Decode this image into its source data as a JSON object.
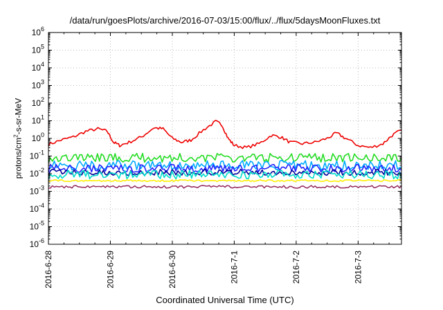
{
  "chart_data": {
    "type": "line",
    "title": "/data/run/goesPlots/archive/2016-07-03/15:00/flux/../flux/5daysMoonFluxes.txt",
    "xlabel": "Coordinated Universal Time (UTC)",
    "ylabel_parts": [
      "protons/cm",
      "2",
      "-s-sr-MeV"
    ],
    "y_scale": "log",
    "ylim": [
      1e-06,
      1000000.0
    ],
    "y_ticks": [
      {
        "base": "10",
        "exp": "6"
      },
      {
        "base": "10",
        "exp": "5"
      },
      {
        "base": "10",
        "exp": "4"
      },
      {
        "base": "10",
        "exp": "3"
      },
      {
        "base": "10",
        "exp": "2"
      },
      {
        "base": "10",
        "exp": "1"
      },
      {
        "base": "10",
        "exp": "0"
      },
      {
        "base": "10",
        "exp": "-1"
      },
      {
        "base": "10",
        "exp": "-2"
      },
      {
        "base": "10",
        "exp": "-3"
      },
      {
        "base": "10",
        "exp": "-4"
      },
      {
        "base": "10",
        "exp": "-5"
      },
      {
        "base": "10",
        "exp": "-6"
      }
    ],
    "x_tick_labels": [
      "2016-6-28",
      "2016-6-29",
      "2016-6-30",
      "2016-7-1",
      "2016-7-2",
      "2016-7-3"
    ],
    "x_range_days": [
      0,
      5.7
    ],
    "grid": true,
    "series": [
      {
        "color": "#ee0000",
        "points": [
          [
            0,
            0.45
          ],
          [
            0.2,
            0.8
          ],
          [
            0.4,
            1.2
          ],
          [
            0.6,
            2.5
          ],
          [
            0.8,
            3.5
          ],
          [
            0.95,
            2.5
          ],
          [
            1.05,
            0.6
          ],
          [
            1.15,
            0.4
          ],
          [
            1.3,
            0.6
          ],
          [
            1.5,
            1.2
          ],
          [
            1.7,
            4.0
          ],
          [
            1.85,
            3.5
          ],
          [
            2.0,
            1.0
          ],
          [
            2.15,
            0.6
          ],
          [
            2.3,
            0.8
          ],
          [
            2.5,
            3.0
          ],
          [
            2.7,
            9.0
          ],
          [
            2.8,
            6.0
          ],
          [
            2.9,
            1.0
          ],
          [
            3.0,
            0.4
          ],
          [
            3.2,
            0.3
          ],
          [
            3.4,
            0.5
          ],
          [
            3.6,
            1.5
          ],
          [
            3.75,
            1.2
          ],
          [
            3.9,
            0.6
          ],
          [
            4.1,
            0.5
          ],
          [
            4.3,
            0.6
          ],
          [
            4.5,
            1.0
          ],
          [
            4.65,
            2.0
          ],
          [
            4.8,
            1.0
          ],
          [
            5.0,
            0.4
          ],
          [
            5.2,
            0.3
          ],
          [
            5.4,
            0.5
          ],
          [
            5.55,
            1.5
          ],
          [
            5.7,
            3.0
          ]
        ]
      },
      {
        "color": "#22dd22",
        "points": [
          [
            0,
            0.08
          ],
          [
            5.7,
            0.08
          ]
        ],
        "level": 0.08,
        "noise": 0.5
      },
      {
        "color": "#00aaff",
        "points": [
          [
            0,
            0.03
          ],
          [
            5.7,
            0.03
          ]
        ],
        "level": 0.03,
        "noise": 0.55
      },
      {
        "color": "#2222ff",
        "points": [
          [
            0,
            0.02
          ],
          [
            5.7,
            0.02
          ]
        ],
        "level": 0.02,
        "noise": 0.45
      },
      {
        "color": "#000099",
        "points": [
          [
            0,
            0.012
          ],
          [
            5.7,
            0.012
          ]
        ],
        "level": 0.012,
        "noise": 0.35
      },
      {
        "color": "#00ddcc",
        "points": [
          [
            0,
            0.009
          ],
          [
            5.7,
            0.009
          ]
        ],
        "level": 0.009,
        "noise": 0.5
      },
      {
        "color": "#ffee00",
        "points": [
          [
            0,
            0.004
          ],
          [
            5.7,
            0.004
          ]
        ],
        "level": 0.004,
        "noise": 0.1
      },
      {
        "color": "#993366",
        "points": [
          [
            0,
            0.0018
          ],
          [
            5.7,
            0.0018
          ]
        ],
        "level": 0.0018,
        "noise": 0.15
      }
    ]
  }
}
